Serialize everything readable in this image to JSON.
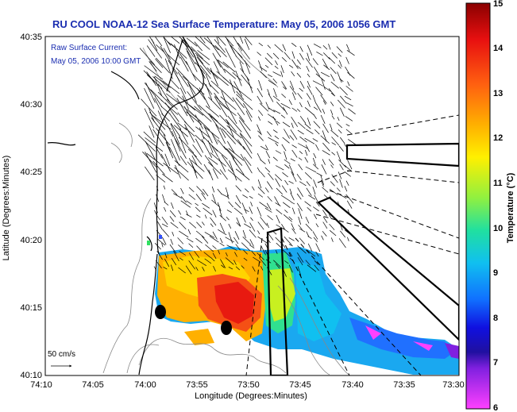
{
  "title": "RU COOL  NOAA-12  Sea Surface Temperature:  May 05, 2006 1056 GMT",
  "legend": {
    "line1": "Raw Surface Current:",
    "line2": "May 05, 2006 10:00 GMT"
  },
  "axes": {
    "xlabel": "Longitude (Degrees:Minutes)",
    "ylabel": "Latitude (Degrees:Minutes)",
    "xticks": [
      "74:10",
      "74:05",
      "74:00",
      "73:55",
      "73:50",
      "73:45",
      "73:40",
      "73:35",
      "73:30"
    ],
    "yticks": [
      "40:35",
      "40:30",
      "40:25",
      "40:20",
      "40:15",
      "40:10"
    ]
  },
  "vector_scale": {
    "label": "50 cm/s"
  },
  "colorbar": {
    "label": "Temperature (°C)",
    "ticks": [
      "15",
      "14",
      "13",
      "12",
      "11",
      "10",
      "9",
      "8",
      "7",
      "6"
    ],
    "range": [
      6,
      15
    ]
  },
  "colors": {
    "title": "#1a2db0",
    "coast": "#000000",
    "bathymetry": "#888888"
  },
  "icons": {
    "markers": "station-marker-icon",
    "scale_arrow": "arrow-right-icon"
  }
}
